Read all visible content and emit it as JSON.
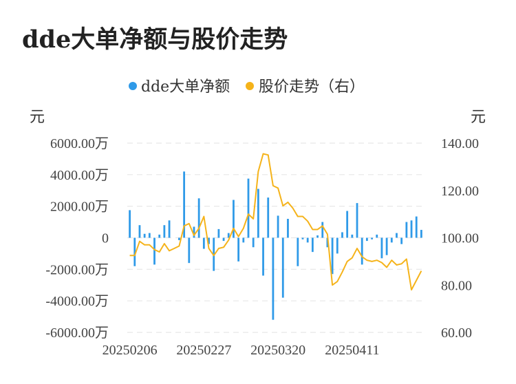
{
  "chart_data": {
    "type": "bar+line",
    "title": "dde大单净额与股价走势",
    "legend": {
      "placement": "top-center",
      "items": [
        {
          "name": "dde大单净额",
          "color": "#2f9ae8",
          "marker": "dot"
        },
        {
          "name": "股价走势（右）",
          "color": "#f5b31a",
          "marker": "dot"
        }
      ]
    },
    "y_left": {
      "unit_label": "元",
      "range": [
        -6000,
        6000
      ],
      "ticks": [
        6000,
        4000,
        2000,
        0,
        -2000,
        -4000,
        -6000
      ],
      "tick_labels": [
        "6000.00万",
        "4000.00万",
        "2000.00万",
        "0",
        "-2000.00万",
        "-4000.00万",
        "-6000.00万"
      ]
    },
    "y_right": {
      "unit_label": "元",
      "range": [
        60,
        140
      ],
      "ticks": [
        140,
        120,
        100,
        80,
        60
      ],
      "tick_labels": [
        "140.00",
        "120.00",
        "100.00",
        "80.00",
        "60.00"
      ]
    },
    "x_tick_labels": [
      {
        "index": 0,
        "label": "20250206"
      },
      {
        "index": 15,
        "label": "20250227"
      },
      {
        "index": 30,
        "label": "20250320"
      },
      {
        "index": 45,
        "label": "20250411"
      }
    ],
    "grid": "horizontal-dashed",
    "series": [
      {
        "name": "dde大单净额",
        "type": "bar",
        "axis": "left",
        "color": "#2f9ae8",
        "values": [
          1750,
          -1800,
          800,
          250,
          300,
          -1700,
          200,
          800,
          1100,
          0,
          -150,
          4200,
          -1600,
          700,
          2500,
          -700,
          -400,
          -2100,
          550,
          -200,
          300,
          2400,
          -1500,
          -300,
          3750,
          -600,
          3100,
          -2400,
          2550,
          -5200,
          1400,
          -3800,
          1200,
          0,
          -1800,
          -100,
          -300,
          -900,
          150,
          1000,
          -600,
          -2300,
          -1000,
          350,
          1700,
          200,
          2200,
          -1700,
          -200,
          -100,
          200,
          -1300,
          -1100,
          -300,
          300,
          -400,
          1000,
          1100,
          1350,
          500
        ]
      },
      {
        "name": "股价走势（右）",
        "type": "line",
        "axis": "right",
        "color": "#f5b31a",
        "values": [
          92.5,
          92.5,
          98.5,
          97,
          97,
          95,
          94,
          97.5,
          94.5,
          95.5,
          96.5,
          105,
          106,
          101,
          104,
          109,
          95.5,
          92.5,
          95.5,
          96,
          99,
          104,
          100.5,
          104,
          110,
          108,
          128,
          135.5,
          135,
          122,
          121,
          113.5,
          115,
          112.5,
          109,
          109,
          107,
          103.5,
          103.5,
          105,
          101.5,
          80,
          81.5,
          85.5,
          90,
          91.5,
          95.5,
          92,
          90.5,
          90,
          90.5,
          89.5,
          87.5,
          90.5,
          88.5,
          89,
          91,
          78,
          82,
          86
        ]
      }
    ]
  }
}
